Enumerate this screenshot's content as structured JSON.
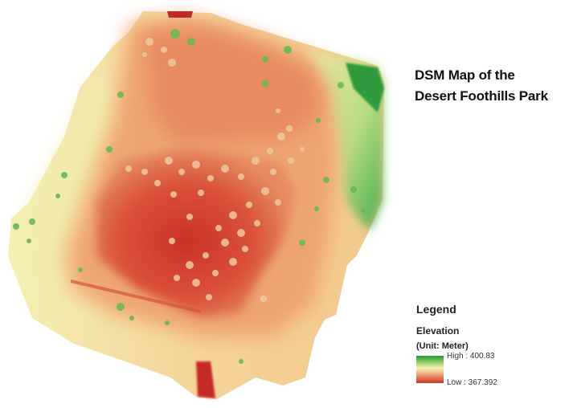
{
  "title": {
    "line1": "DSM Map of the",
    "line2": "Desert Foothills Park"
  },
  "legend": {
    "heading": "Legend",
    "layer": "Elevation",
    "unit": "(Unit: Meter)",
    "high_label": "High : 400.83",
    "low_label": "Low : 367.392",
    "ramp_colors": [
      "#1f9c3a",
      "#9bd06a",
      "#f6f2b8",
      "#f0b080",
      "#d0302a"
    ]
  },
  "elevation": {
    "high": 400.83,
    "low": 367.392,
    "unit": "Meter"
  }
}
